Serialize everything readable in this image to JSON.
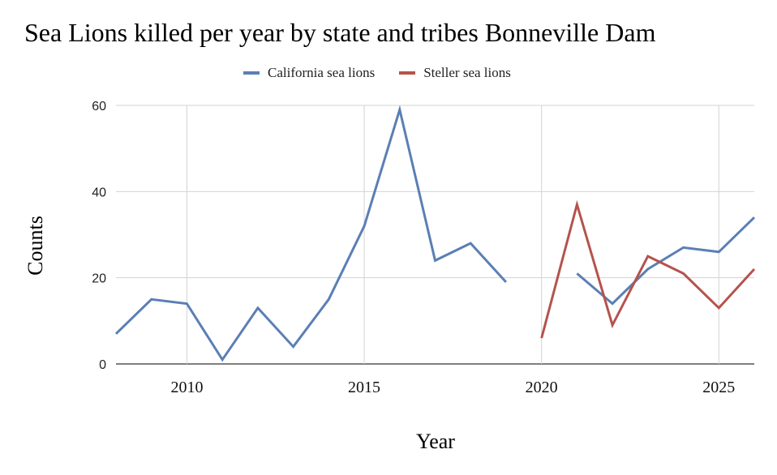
{
  "chart_data": {
    "type": "line",
    "title": "Sea Lions killed per year by state and tribes Bonneville Dam",
    "xlabel": "Year",
    "ylabel": "Counts",
    "xlim": [
      2008,
      2026
    ],
    "ylim": [
      0,
      60
    ],
    "x_ticks": [
      2010,
      2015,
      2020,
      2025
    ],
    "y_ticks": [
      0,
      20,
      40,
      60
    ],
    "grid": true,
    "legend_position": "top",
    "series": [
      {
        "name": "California sea lions",
        "color": "#5b7fb4",
        "points": [
          [
            2008,
            7
          ],
          [
            2009,
            15
          ],
          [
            2010,
            14
          ],
          [
            2011,
            1
          ],
          [
            2012,
            13
          ],
          [
            2013,
            4
          ],
          [
            2014,
            15
          ],
          [
            2015,
            32
          ],
          [
            2016,
            59
          ],
          [
            2017,
            24
          ],
          [
            2018,
            28
          ],
          [
            2019,
            19
          ],
          [
            2020,
            null
          ],
          [
            2021,
            21
          ],
          [
            2022,
            14
          ],
          [
            2023,
            22
          ],
          [
            2024,
            27
          ],
          [
            2025,
            26
          ],
          [
            2026,
            34
          ]
        ]
      },
      {
        "name": "Steller sea lions",
        "color": "#b5534d",
        "points": [
          [
            2020,
            6
          ],
          [
            2021,
            37
          ],
          [
            2022,
            9
          ],
          [
            2023,
            25
          ],
          [
            2024,
            21
          ],
          [
            2025,
            13
          ],
          [
            2026,
            22
          ]
        ]
      }
    ]
  }
}
